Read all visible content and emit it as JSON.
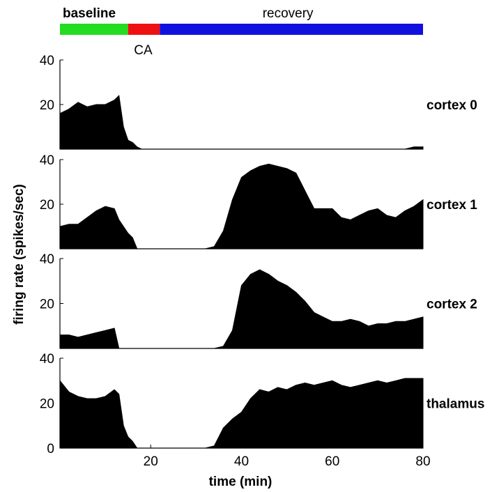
{
  "chart_data": {
    "type": "area",
    "xlabel": "time (min)",
    "ylabel": "firing rate (spikes/sec)",
    "xlim": [
      0,
      80
    ],
    "ylim": [
      0,
      40
    ],
    "x_ticks": [
      "20",
      "40",
      "60",
      "80"
    ],
    "phases": [
      {
        "label": "baseline",
        "start": 0,
        "end": 15,
        "color": "#22dd22"
      },
      {
        "label": "CA",
        "start": 15,
        "end": 22,
        "color": "#ee1111"
      },
      {
        "label": "recovery",
        "start": 22,
        "end": 80,
        "color": "#1111dd"
      }
    ],
    "x": [
      0,
      2,
      4,
      6,
      8,
      10,
      12,
      13,
      14,
      15,
      16,
      17,
      18,
      20,
      22,
      24,
      26,
      28,
      30,
      32,
      34,
      36,
      38,
      40,
      42,
      44,
      46,
      48,
      50,
      52,
      54,
      56,
      58,
      60,
      62,
      64,
      66,
      68,
      70,
      72,
      74,
      76,
      78,
      80
    ],
    "series": [
      {
        "name": "cortex 0",
        "y_ticks": [
          "40",
          "20"
        ],
        "values": [
          16,
          18,
          21,
          19,
          20,
          20,
          22,
          24,
          10,
          4,
          3,
          1,
          0,
          0,
          0,
          0,
          0,
          0,
          0,
          0,
          0,
          0,
          0,
          0,
          0,
          0,
          0,
          0,
          0,
          0,
          0,
          0,
          0,
          0,
          0,
          0,
          0,
          0,
          0,
          0,
          0,
          0,
          1,
          1
        ]
      },
      {
        "name": "cortex 1",
        "y_ticks": [
          "40",
          "20"
        ],
        "values": [
          10,
          11,
          11,
          14,
          17,
          19,
          18,
          13,
          10,
          7,
          5,
          0,
          0,
          0,
          0,
          0,
          0,
          0,
          0,
          0,
          1,
          8,
          22,
          32,
          35,
          37,
          38,
          37,
          36,
          34,
          26,
          18,
          18,
          18,
          14,
          13,
          15,
          17,
          18,
          15,
          14,
          17,
          19,
          22
        ]
      },
      {
        "name": "cortex 2",
        "y_ticks": [
          "40",
          "20"
        ],
        "values": [
          6,
          6,
          5,
          6,
          7,
          8,
          9,
          0,
          0,
          0,
          0,
          0,
          0,
          0,
          0,
          0,
          0,
          0,
          0,
          0,
          0,
          1,
          8,
          28,
          33,
          35,
          33,
          30,
          28,
          25,
          21,
          16,
          14,
          12,
          12,
          13,
          12,
          10,
          11,
          11,
          12,
          12,
          13,
          14
        ]
      },
      {
        "name": "thalamus",
        "y_ticks": [
          "40",
          "20",
          "0"
        ],
        "values": [
          30,
          25,
          23,
          22,
          22,
          23,
          26,
          24,
          10,
          5,
          3,
          0,
          0,
          0,
          0,
          0,
          0,
          0,
          0,
          0,
          1,
          9,
          13,
          16,
          22,
          26,
          25,
          27,
          26,
          28,
          29,
          28,
          29,
          30,
          28,
          27,
          28,
          29,
          30,
          29,
          30,
          31,
          31,
          31
        ]
      }
    ]
  }
}
